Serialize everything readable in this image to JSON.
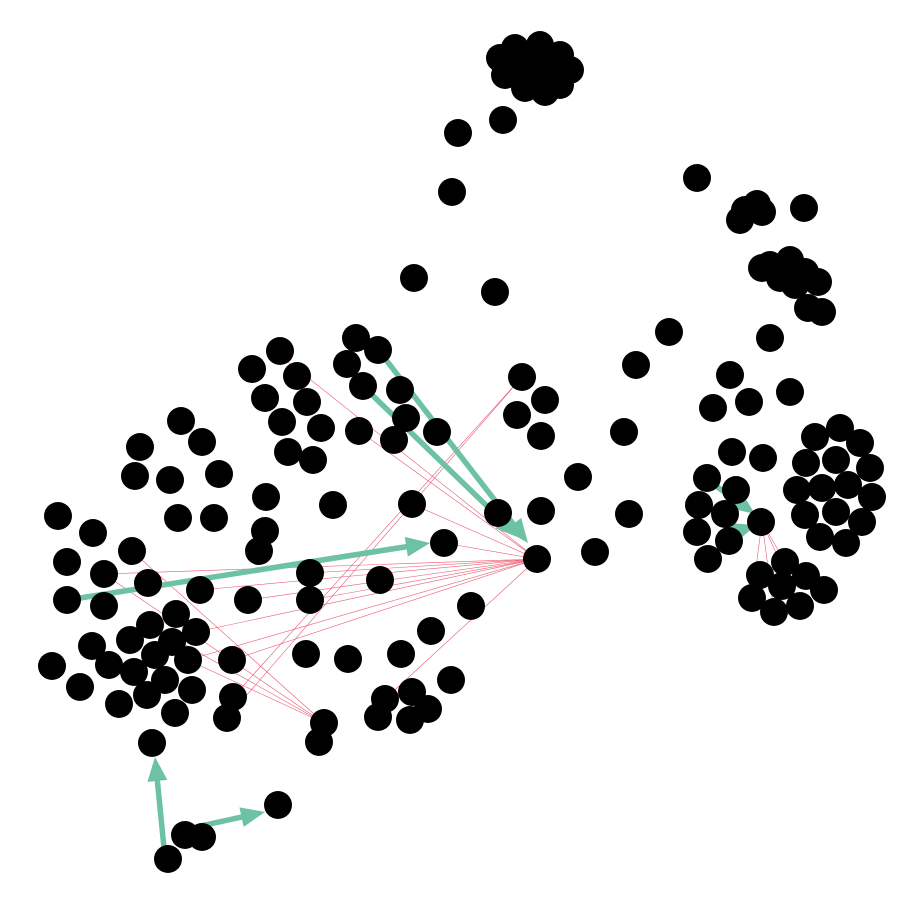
{
  "colors": {
    "background": "#ffffff",
    "node": "#000000",
    "thin_edge": "#e8405a",
    "thick_edge": "#6cc2a2"
  }
}
